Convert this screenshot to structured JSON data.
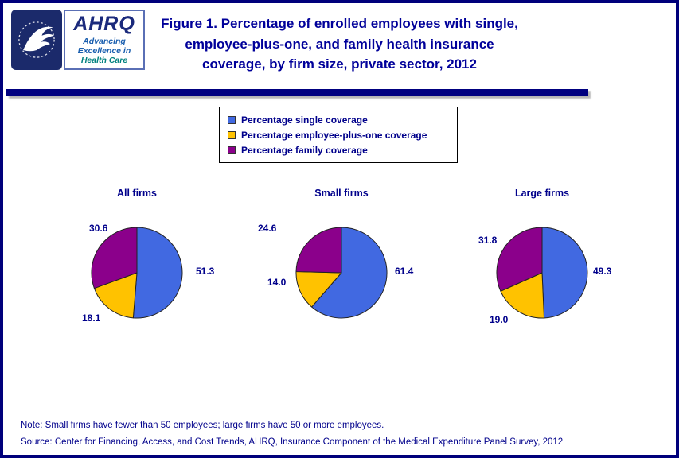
{
  "header": {
    "title": "Figure 1. Percentage of enrolled employees with single,\nemployee-plus-one, and family health insurance\ncoverage, by firm size, private sector, 2012",
    "ahrq": {
      "acronym": "AHRQ",
      "tagline1": "Advancing\nExcellence in",
      "tagline2": "Health Care"
    }
  },
  "legend": [
    {
      "label": "Percentage single coverage",
      "color": "#4169E1"
    },
    {
      "label": "Percentage employee-plus-one coverage",
      "color": "#FFC200"
    },
    {
      "label": "Percentage family coverage",
      "color": "#8B008B"
    }
  ],
  "chart_data": [
    {
      "type": "pie",
      "title": "All firms",
      "labels": [
        "Percentage single coverage",
        "Percentage employee-plus-one coverage",
        "Percentage family coverage"
      ],
      "values": [
        51.3,
        18.1,
        30.6
      ],
      "value_labels": [
        "51.3",
        "18.1",
        "30.6"
      ],
      "colors": [
        "#4169E1",
        "#FFC200",
        "#8B008B"
      ],
      "start_angle_deg": -90,
      "direction": "clockwise"
    },
    {
      "type": "pie",
      "title": "Small firms",
      "labels": [
        "Percentage single coverage",
        "Percentage employee-plus-one coverage",
        "Percentage family coverage"
      ],
      "values": [
        61.4,
        14.0,
        24.6
      ],
      "value_labels": [
        "61.4",
        "14.0",
        "24.6"
      ],
      "colors": [
        "#4169E1",
        "#FFC200",
        "#8B008B"
      ],
      "start_angle_deg": -90,
      "direction": "clockwise"
    },
    {
      "type": "pie",
      "title": "Large firms",
      "labels": [
        "Percentage single coverage",
        "Percentage employee-plus-one coverage",
        "Percentage family coverage"
      ],
      "values": [
        49.3,
        19.0,
        31.8
      ],
      "value_labels": [
        "49.3",
        "19.0",
        "31.8"
      ],
      "colors": [
        "#4169E1",
        "#FFC200",
        "#8B008B"
      ],
      "start_angle_deg": -90,
      "direction": "clockwise"
    }
  ],
  "footer": {
    "note": "Note: Small firms have fewer than 50 employees; large firms have 50 or more employees.",
    "source": "Source: Center for Financing, Access, and Cost Trends, AHRQ, Insurance Component of the Medical Expenditure Panel Survey, 2012"
  }
}
